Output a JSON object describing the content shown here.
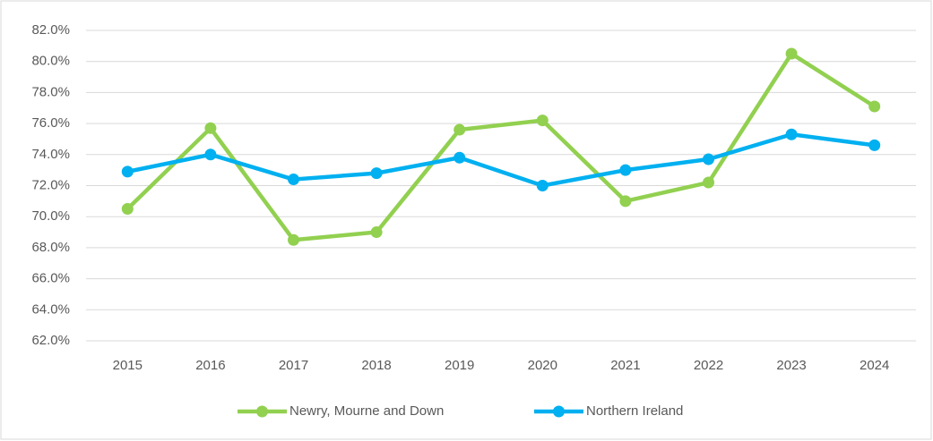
{
  "chart_data": {
    "type": "line",
    "categories": [
      "2015",
      "2016",
      "2017",
      "2018",
      "2019",
      "2020",
      "2021",
      "2022",
      "2023",
      "2024"
    ],
    "series": [
      {
        "name": "Newry, Mourne and Down",
        "color": "#92d050",
        "values": [
          70.5,
          75.7,
          68.5,
          69.0,
          75.6,
          76.2,
          71.0,
          72.2,
          80.5,
          77.1
        ]
      },
      {
        "name": "Northern Ireland",
        "color": "#00b0f0",
        "values": [
          72.9,
          74.0,
          72.4,
          72.8,
          73.8,
          72.0,
          73.0,
          73.7,
          75.3,
          74.6
        ]
      }
    ],
    "ylim": [
      62,
      82
    ],
    "yticks": [
      {
        "value": 62,
        "label": "62.0%"
      },
      {
        "value": 64,
        "label": "64.0%"
      },
      {
        "value": 66,
        "label": "66.0%"
      },
      {
        "value": 68,
        "label": "68.0%"
      },
      {
        "value": 70,
        "label": "70.0%"
      },
      {
        "value": 72,
        "label": "72.0%"
      },
      {
        "value": 74,
        "label": "74.0%"
      },
      {
        "value": 76,
        "label": "76.0%"
      },
      {
        "value": 78,
        "label": "78.0%"
      },
      {
        "value": 80,
        "label": "80.0%"
      },
      {
        "value": 82,
        "label": "82.0%"
      }
    ],
    "grid": true,
    "legend": "bottom"
  }
}
